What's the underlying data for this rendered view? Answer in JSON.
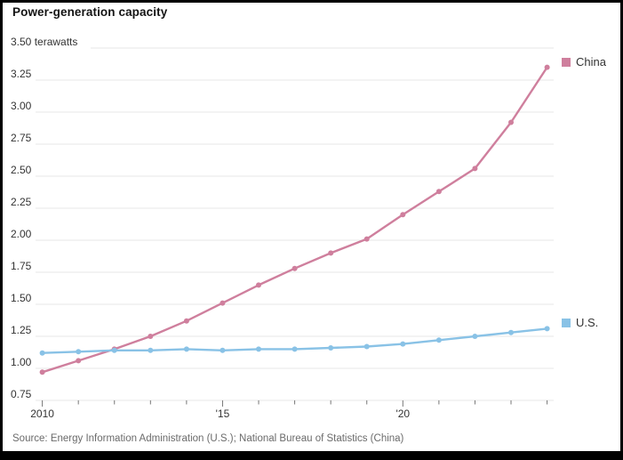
{
  "header": {
    "title": "Power-generation capacity"
  },
  "chart_data": {
    "type": "line",
    "title": "Power-generation capacity",
    "unit_label": "terawatts",
    "x": [
      2010,
      2011,
      2012,
      2013,
      2014,
      2015,
      2016,
      2017,
      2018,
      2019,
      2020,
      2021,
      2022,
      2023,
      2024
    ],
    "series": [
      {
        "name": "China",
        "color": "#cf7f9d",
        "values": [
          0.97,
          1.06,
          1.15,
          1.25,
          1.37,
          1.51,
          1.65,
          1.78,
          1.9,
          2.01,
          2.2,
          2.38,
          2.56,
          2.92,
          3.35
        ]
      },
      {
        "name": "U.S.",
        "color": "#89c2e6",
        "values": [
          1.12,
          1.13,
          1.14,
          1.14,
          1.15,
          1.14,
          1.15,
          1.15,
          1.16,
          1.17,
          1.19,
          1.22,
          1.25,
          1.28,
          1.31
        ]
      }
    ],
    "ylim": [
      0.75,
      3.5
    ],
    "ytick_step": 0.25,
    "ytick_labels": [
      "0.75",
      "1.00",
      "1.25",
      "1.50",
      "1.75",
      "2.00",
      "2.25",
      "2.50",
      "2.75",
      "3.00",
      "3.25",
      "3.50"
    ],
    "top_axis_label": "3.50 terawatts",
    "xtick_labeled": [
      {
        "year": 2010,
        "label": "2010"
      },
      {
        "year": 2015,
        "label": "'15"
      },
      {
        "year": 2020,
        "label": "'20"
      }
    ],
    "grid": "horizontal",
    "legend_position": "right-of-line-ends",
    "colors": {
      "grid": "#e7e7e7",
      "tick": "#777777",
      "axis_text": "#333333"
    }
  },
  "source": {
    "text": "Source: Energy Information Administration (U.S.); National Bureau of Statistics (China)"
  }
}
